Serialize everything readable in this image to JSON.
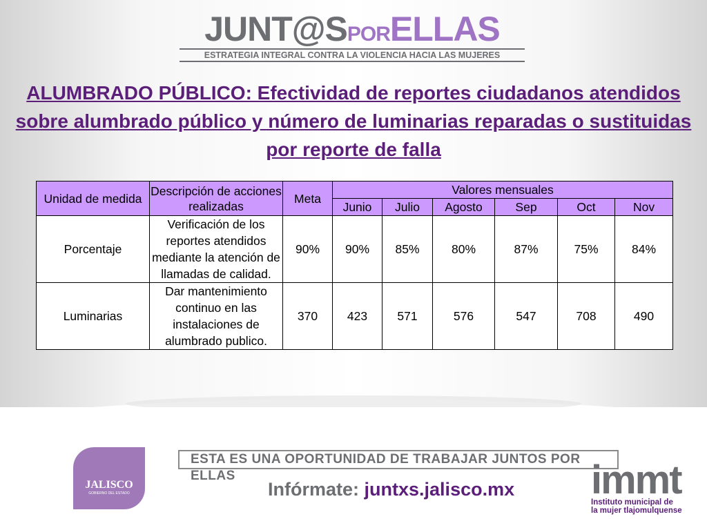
{
  "header": {
    "logo": {
      "left": "JUNT@S",
      "mid": "POR",
      "right": "ELLAS"
    },
    "tagline": "ESTRATEGIA INTEGRAL CONTRA LA VIOLENCIA HACIA LAS MUJERES"
  },
  "title": "ALUMBRADO PÚBLICO: Efectividad de reportes ciudadanos atendidos sobre alumbrado público y número de luminarias reparadas o sustituidas por reporte de falla",
  "table": {
    "headers": {
      "unit": "Unidad de medida",
      "description": "Descripción de acciones realizadas",
      "goal": "Meta",
      "monthly": "Valores mensuales",
      "months": [
        "Junio",
        "Julio",
        "Agosto",
        "Sep",
        "Oct",
        "Nov"
      ]
    },
    "rows": [
      [
        "Porcentaje",
        "Verificación de los reportes atendidos mediante la atención de llamadas de calidad.",
        "90%",
        "90%",
        "85%",
        "80%",
        "87%",
        "75%",
        "84%"
      ],
      [
        "Luminarias",
        "Dar mantenimiento continuo en las instalaciones de alumbrado publico.",
        "370",
        "423",
        "571",
        "576",
        "547",
        "708",
        "490"
      ]
    ]
  },
  "footer": {
    "banner": {
      "plain": "ESTA ES UNA OPORTUNIDAD",
      "bold": "DE TRABAJAR JUNTOS POR ELLAS"
    },
    "info": {
      "label": "Infórmate:",
      "url": "juntxs.jalisco.mx"
    },
    "jalisco": {
      "name": "JALISCO",
      "sub": "GOBIERNO DEL ESTADO"
    },
    "immt": {
      "name": "immt",
      "line1": "Instituto municipal de",
      "line2": "la mujer tlajomulquense"
    }
  }
}
